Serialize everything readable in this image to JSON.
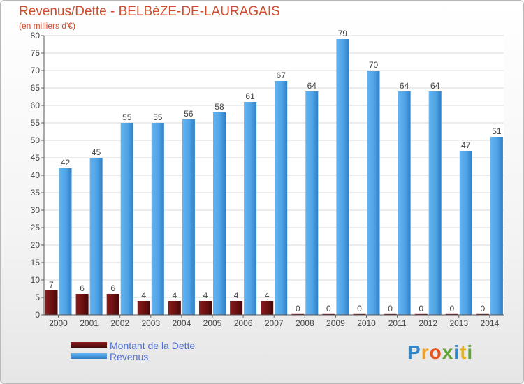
{
  "title": "Revenus/Dette - BELBèZE-DE-LAURAGAIS",
  "subtitle": "(en milliers d'€)",
  "legend": {
    "debt_label": "Montant de la Dette",
    "revenue_label": "Revenus"
  },
  "logo": "Proxiti",
  "colors": {
    "debt": "#6b1010",
    "revenue": "#4fa3e6",
    "title": "#d14c2c",
    "legend_text": "#4f6fd9"
  },
  "chart_data": {
    "type": "bar",
    "title": "Revenus/Dette - BELBèZE-DE-LAURAGAIS",
    "subtitle": "(en milliers d'€)",
    "xlabel": "",
    "ylabel": "",
    "ylim": [
      0,
      80
    ],
    "yticks": [
      0,
      5,
      10,
      15,
      20,
      25,
      30,
      35,
      40,
      45,
      50,
      55,
      60,
      65,
      70,
      75,
      80
    ],
    "grid": true,
    "legend_position": "bottom-left",
    "categories": [
      "2000",
      "2001",
      "2002",
      "2003",
      "2004",
      "2005",
      "2006",
      "2007",
      "2008",
      "2009",
      "2010",
      "2011",
      "2012",
      "2013",
      "2014"
    ],
    "series": [
      {
        "name": "Montant de la Dette",
        "values": [
          7,
          6,
          6,
          4,
          4,
          4,
          4,
          4,
          0,
          0,
          0,
          0,
          0,
          0,
          0
        ]
      },
      {
        "name": "Revenus",
        "values": [
          42,
          45,
          55,
          55,
          56,
          58,
          61,
          67,
          64,
          79,
          70,
          64,
          64,
          47,
          51
        ]
      }
    ]
  }
}
